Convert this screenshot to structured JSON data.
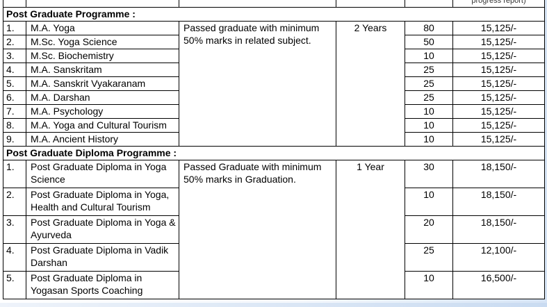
{
  "header_partial": "progress report)",
  "sections": [
    {
      "title": "Post Graduate Programme :",
      "eligibility": "Passed graduate with minimum 50% marks in related subject.",
      "duration": "2 Years",
      "rows": [
        {
          "no": "1.",
          "name": "M.A. Yoga",
          "seats": "80",
          "fee": "15,125/-"
        },
        {
          "no": "2.",
          "name": "M.Sc. Yoga Science",
          "seats": "50",
          "fee": "15,125/-"
        },
        {
          "no": "3.",
          "name": "M.Sc. Biochemistry",
          "seats": "10",
          "fee": "15,125/-"
        },
        {
          "no": "4.",
          "name": "M.A. Sanskritam",
          "seats": "25",
          "fee": "15,125/-"
        },
        {
          "no": "5.",
          "name": "M.A. Sanskrit Vyakaranam",
          "seats": "25",
          "fee": "15,125/-"
        },
        {
          "no": "6.",
          "name": "M.A. Darshan",
          "seats": "25",
          "fee": "15,125/-"
        },
        {
          "no": "7.",
          "name": "M.A. Psychology",
          "seats": "10",
          "fee": "15,125/-"
        },
        {
          "no": "8.",
          "name": "M.A. Yoga and Cultural Tourism",
          "seats": "10",
          "fee": "15,125/-"
        },
        {
          "no": "9.",
          "name": "M.A. Ancient History",
          "seats": "10",
          "fee": "15,125/-"
        }
      ]
    },
    {
      "title": "Post Graduate Diploma Programme :",
      "eligibility": "Passed Graduate  with minimum 50% marks in Graduation.",
      "duration": "1 Year",
      "rows": [
        {
          "no": "1.",
          "name": "Post Graduate Diploma in Yoga Science",
          "seats": "30",
          "fee": "18,150/-"
        },
        {
          "no": "2.",
          "name": "Post Graduate Diploma in Yoga, Health and Cultural Tourism",
          "seats": "10",
          "fee": "18,150/-"
        },
        {
          "no": "3.",
          "name": "Post Graduate Diploma in Yoga & Ayurveda",
          "seats": "20",
          "fee": "18,150/-"
        },
        {
          "no": "4.",
          "name": "Post Graduate Diploma in Vadik Darshan",
          "seats": "25",
          "fee": "12,100/-"
        },
        {
          "no": "5.",
          "name": "Post Graduate Diploma in Yogasan Sports Coaching",
          "seats": "10",
          "fee": "16,500/-"
        }
      ]
    }
  ]
}
